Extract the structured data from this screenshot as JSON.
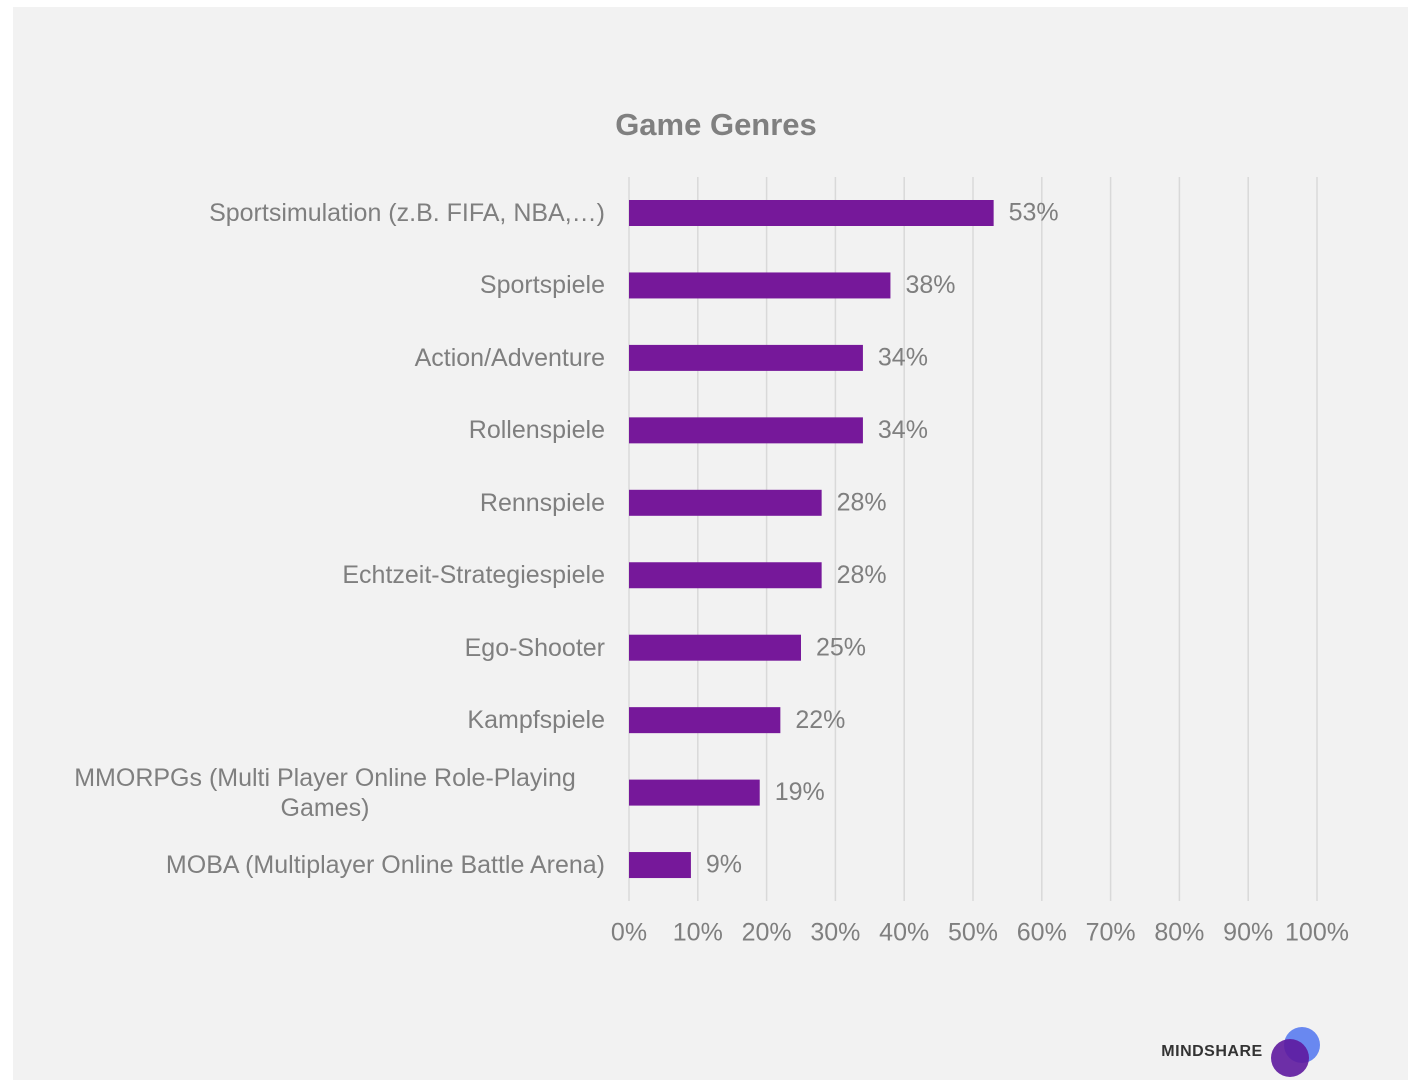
{
  "chart_data": {
    "type": "bar",
    "orientation": "horizontal",
    "title": "Game Genres",
    "categories": [
      "Sportsimulation (z.B. FIFA, NBA,…)",
      "Sportspiele",
      "Action/Adventure",
      "Rollenspiele",
      "Rennspiele",
      "Echtzeit-Strategiespiele",
      "Ego-Shooter",
      "Kampfspiele",
      "MMORPGs (Multi Player Online Role-Playing Games)",
      "MOBA (Multiplayer Online Battle Arena)"
    ],
    "values": [
      53,
      38,
      34,
      34,
      28,
      28,
      25,
      22,
      19,
      9
    ],
    "value_labels": [
      "53%",
      "38%",
      "34%",
      "34%",
      "28%",
      "28%",
      "25%",
      "22%",
      "19%",
      "9%"
    ],
    "color": "#76189a",
    "xlim": [
      0,
      100
    ],
    "xticks": [
      {
        "value": 0,
        "label": "0%"
      },
      {
        "value": 10,
        "label": "10%"
      },
      {
        "value": 20,
        "label": "20%"
      },
      {
        "value": 30,
        "label": "30%"
      },
      {
        "value": 40,
        "label": "40%"
      },
      {
        "value": 50,
        "label": "50%"
      },
      {
        "value": 60,
        "label": "60%"
      },
      {
        "value": 70,
        "label": "70%"
      },
      {
        "value": 80,
        "label": "80%"
      },
      {
        "value": 90,
        "label": "90%"
      },
      {
        "value": 100,
        "label": "100%"
      }
    ],
    "grid": true
  },
  "logo": "MINDSHARE"
}
